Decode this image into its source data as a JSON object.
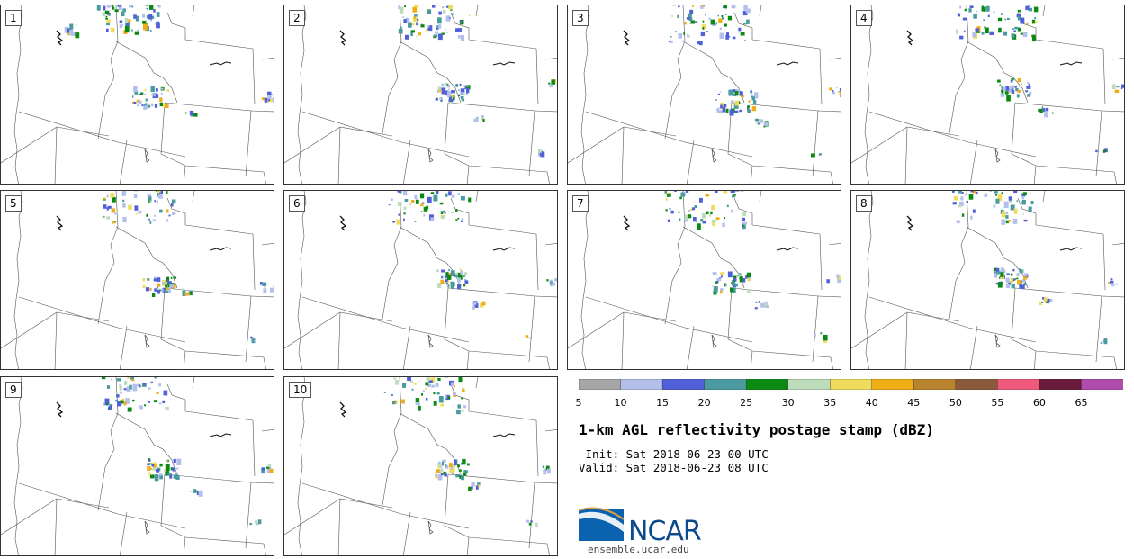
{
  "panels": [
    {
      "label": "1"
    },
    {
      "label": "2"
    },
    {
      "label": "3"
    },
    {
      "label": "4"
    },
    {
      "label": "5"
    },
    {
      "label": "6"
    },
    {
      "label": "7"
    },
    {
      "label": "8"
    },
    {
      "label": "9"
    },
    {
      "label": "10"
    }
  ],
  "colorbar": {
    "ticks": [
      "5",
      "10",
      "15",
      "20",
      "25",
      "30",
      "35",
      "40",
      "45",
      "50",
      "55",
      "60",
      "65"
    ],
    "colors": [
      "#a6a6a6",
      "#b4c0ec",
      "#5060d8",
      "#4a9aa0",
      "#0a8a10",
      "#bcdcbc",
      "#efdc5c",
      "#efae18",
      "#b88430",
      "#8b5a3a",
      "#ef5a7c",
      "#6a1a3a",
      "#b04cac"
    ]
  },
  "title": "1-km AGL reflectivity postage stamp (dBZ)",
  "init_line": " Init: Sat 2018-06-23 00 UTC",
  "valid_line": "Valid: Sat 2018-06-23 08 UTC",
  "logo": {
    "text": "NCAR",
    "url": "ensemble.ucar.edu"
  }
}
